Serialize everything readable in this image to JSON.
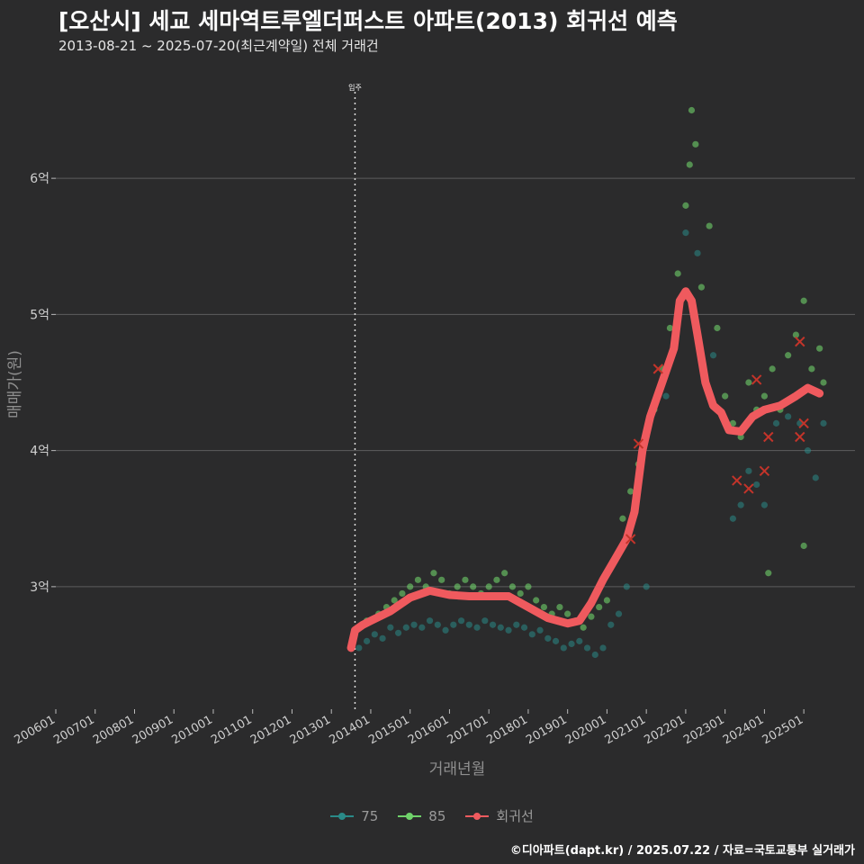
{
  "title": "[오산시] 세교 세마역트루엘더퍼스트 아파트(2013) 회귀선 예측",
  "subtitle": "2013-08-21 ~ 2025-07-20(최근계약일) 전체 거래건",
  "caption": "©디아파트(dapt.kr) / 2025.07.22 / 자료=국토교통부 실거래가",
  "colors": {
    "background": "#2b2b2c",
    "grid": "#5e5e5e",
    "series_75": "#2a8a88",
    "series_85": "#6fd26a",
    "regression": "#ef5a5e",
    "highlight_x": "#c4342a"
  },
  "chart_data": {
    "type": "scatter",
    "title": "[오산시] 세교 세마역트루엘더퍼스트 아파트(2013) 회귀선 예측",
    "xlabel": "거래년월",
    "ylabel": "매매가(원)",
    "x_domain": [
      2006.0,
      2026.3
    ],
    "ylim": [
      2.1,
      6.9
    ],
    "yticks": [
      3,
      4,
      5,
      6
    ],
    "ytick_labels": [
      "3억",
      "4억",
      "5억",
      "6억"
    ],
    "xtick_labels": [
      "200601",
      "200701",
      "200801",
      "200901",
      "201001",
      "201101",
      "201201",
      "201301",
      "201401",
      "201501",
      "201601",
      "201701",
      "201801",
      "201901",
      "202001",
      "202101",
      "202201",
      "202301",
      "202401",
      "202501"
    ],
    "vline": {
      "x": 2013.6,
      "label": "입주"
    },
    "legend": [
      "75",
      "85",
      "회귀선"
    ],
    "series": [
      {
        "name": "75",
        "points": [
          [
            2013.7,
            2.55
          ],
          [
            2013.9,
            2.6
          ],
          [
            2014.1,
            2.65
          ],
          [
            2014.3,
            2.62
          ],
          [
            2014.5,
            2.7
          ],
          [
            2014.7,
            2.66
          ],
          [
            2014.9,
            2.7
          ],
          [
            2015.1,
            2.72
          ],
          [
            2015.3,
            2.7
          ],
          [
            2015.5,
            2.75
          ],
          [
            2015.7,
            2.72
          ],
          [
            2015.9,
            2.68
          ],
          [
            2016.1,
            2.72
          ],
          [
            2016.3,
            2.75
          ],
          [
            2016.5,
            2.72
          ],
          [
            2016.7,
            2.7
          ],
          [
            2016.9,
            2.75
          ],
          [
            2017.1,
            2.72
          ],
          [
            2017.3,
            2.7
          ],
          [
            2017.5,
            2.68
          ],
          [
            2017.7,
            2.72
          ],
          [
            2017.9,
            2.7
          ],
          [
            2018.1,
            2.65
          ],
          [
            2018.3,
            2.68
          ],
          [
            2018.5,
            2.62
          ],
          [
            2018.7,
            2.6
          ],
          [
            2018.9,
            2.55
          ],
          [
            2019.1,
            2.58
          ],
          [
            2019.3,
            2.6
          ],
          [
            2019.5,
            2.55
          ],
          [
            2019.7,
            2.5
          ],
          [
            2019.9,
            2.55
          ],
          [
            2020.1,
            2.72
          ],
          [
            2020.3,
            2.8
          ],
          [
            2020.5,
            3.0
          ],
          [
            2021.0,
            3.0
          ],
          [
            2021.5,
            4.4
          ],
          [
            2022.0,
            5.6
          ],
          [
            2022.3,
            5.45
          ],
          [
            2022.7,
            4.7
          ],
          [
            2023.0,
            4.2
          ],
          [
            2023.2,
            3.5
          ],
          [
            2023.4,
            3.6
          ],
          [
            2023.6,
            3.85
          ],
          [
            2023.8,
            3.75
          ],
          [
            2024.0,
            3.6
          ],
          [
            2024.3,
            4.2
          ],
          [
            2024.6,
            4.25
          ],
          [
            2024.9,
            4.2
          ],
          [
            2025.1,
            4.0
          ],
          [
            2025.3,
            3.8
          ],
          [
            2025.5,
            4.2
          ]
        ]
      },
      {
        "name": "85",
        "points": [
          [
            2013.9,
            2.75
          ],
          [
            2014.2,
            2.8
          ],
          [
            2014.4,
            2.85
          ],
          [
            2014.6,
            2.9
          ],
          [
            2014.8,
            2.95
          ],
          [
            2015.0,
            3.0
          ],
          [
            2015.2,
            3.05
          ],
          [
            2015.4,
            3.0
          ],
          [
            2015.6,
            3.1
          ],
          [
            2015.8,
            3.05
          ],
          [
            2016.0,
            2.95
          ],
          [
            2016.2,
            3.0
          ],
          [
            2016.4,
            3.05
          ],
          [
            2016.6,
            3.0
          ],
          [
            2016.8,
            2.95
          ],
          [
            2017.0,
            3.0
          ],
          [
            2017.2,
            3.05
          ],
          [
            2017.4,
            3.1
          ],
          [
            2017.6,
            3.0
          ],
          [
            2017.8,
            2.95
          ],
          [
            2018.0,
            3.0
          ],
          [
            2018.2,
            2.9
          ],
          [
            2018.4,
            2.85
          ],
          [
            2018.6,
            2.8
          ],
          [
            2018.8,
            2.85
          ],
          [
            2019.0,
            2.8
          ],
          [
            2019.2,
            2.75
          ],
          [
            2019.4,
            2.7
          ],
          [
            2019.6,
            2.78
          ],
          [
            2019.8,
            2.85
          ],
          [
            2020.0,
            2.9
          ],
          [
            2020.2,
            3.2
          ],
          [
            2020.4,
            3.5
          ],
          [
            2020.6,
            3.7
          ],
          [
            2020.8,
            3.9
          ],
          [
            2021.0,
            4.1
          ],
          [
            2021.2,
            4.3
          ],
          [
            2021.4,
            4.6
          ],
          [
            2021.6,
            4.9
          ],
          [
            2021.8,
            5.3
          ],
          [
            2022.0,
            5.8
          ],
          [
            2022.1,
            6.1
          ],
          [
            2022.15,
            6.5
          ],
          [
            2022.25,
            6.25
          ],
          [
            2022.4,
            5.2
          ],
          [
            2022.6,
            5.65
          ],
          [
            2022.8,
            4.9
          ],
          [
            2023.0,
            4.4
          ],
          [
            2023.2,
            4.2
          ],
          [
            2023.4,
            4.1
          ],
          [
            2023.6,
            4.5
          ],
          [
            2023.8,
            4.3
          ],
          [
            2024.0,
            4.4
          ],
          [
            2024.2,
            4.6
          ],
          [
            2024.4,
            4.3
          ],
          [
            2024.6,
            4.7
          ],
          [
            2024.8,
            4.85
          ],
          [
            2025.0,
            5.1
          ],
          [
            2025.2,
            4.6
          ],
          [
            2025.4,
            4.75
          ],
          [
            2025.5,
            4.5
          ],
          [
            2024.1,
            3.1
          ],
          [
            2025.0,
            3.3
          ]
        ]
      },
      {
        "name": "회귀선",
        "points": [
          [
            2013.5,
            2.55
          ],
          [
            2013.6,
            2.68
          ],
          [
            2013.8,
            2.72
          ],
          [
            2014.0,
            2.75
          ],
          [
            2014.5,
            2.82
          ],
          [
            2015.0,
            2.92
          ],
          [
            2015.5,
            2.97
          ],
          [
            2016.0,
            2.94
          ],
          [
            2016.5,
            2.93
          ],
          [
            2017.0,
            2.93
          ],
          [
            2017.5,
            2.93
          ],
          [
            2018.0,
            2.85
          ],
          [
            2018.5,
            2.77
          ],
          [
            2019.0,
            2.73
          ],
          [
            2019.3,
            2.75
          ],
          [
            2019.6,
            2.88
          ],
          [
            2019.9,
            3.05
          ],
          [
            2020.2,
            3.2
          ],
          [
            2020.5,
            3.35
          ],
          [
            2020.7,
            3.55
          ],
          [
            2020.9,
            4.0
          ],
          [
            2021.1,
            4.25
          ],
          [
            2021.4,
            4.5
          ],
          [
            2021.7,
            4.75
          ],
          [
            2021.85,
            5.1
          ],
          [
            2022.0,
            5.17
          ],
          [
            2022.15,
            5.1
          ],
          [
            2022.3,
            4.85
          ],
          [
            2022.5,
            4.5
          ],
          [
            2022.7,
            4.33
          ],
          [
            2022.9,
            4.28
          ],
          [
            2023.1,
            4.15
          ],
          [
            2023.4,
            4.14
          ],
          [
            2023.7,
            4.25
          ],
          [
            2024.0,
            4.3
          ],
          [
            2024.4,
            4.33
          ],
          [
            2024.8,
            4.4
          ],
          [
            2025.1,
            4.46
          ],
          [
            2025.4,
            4.42
          ]
        ]
      }
    ],
    "highlighted": [
      [
        2020.8,
        4.05
      ],
      [
        2021.3,
        4.6
      ],
      [
        2020.6,
        3.35
      ],
      [
        2023.3,
        3.78
      ],
      [
        2023.6,
        3.72
      ],
      [
        2023.8,
        4.52
      ],
      [
        2024.0,
        3.85
      ],
      [
        2024.1,
        4.1
      ],
      [
        2024.9,
        4.8
      ],
      [
        2024.9,
        4.1
      ],
      [
        2025.0,
        4.2
      ]
    ]
  }
}
